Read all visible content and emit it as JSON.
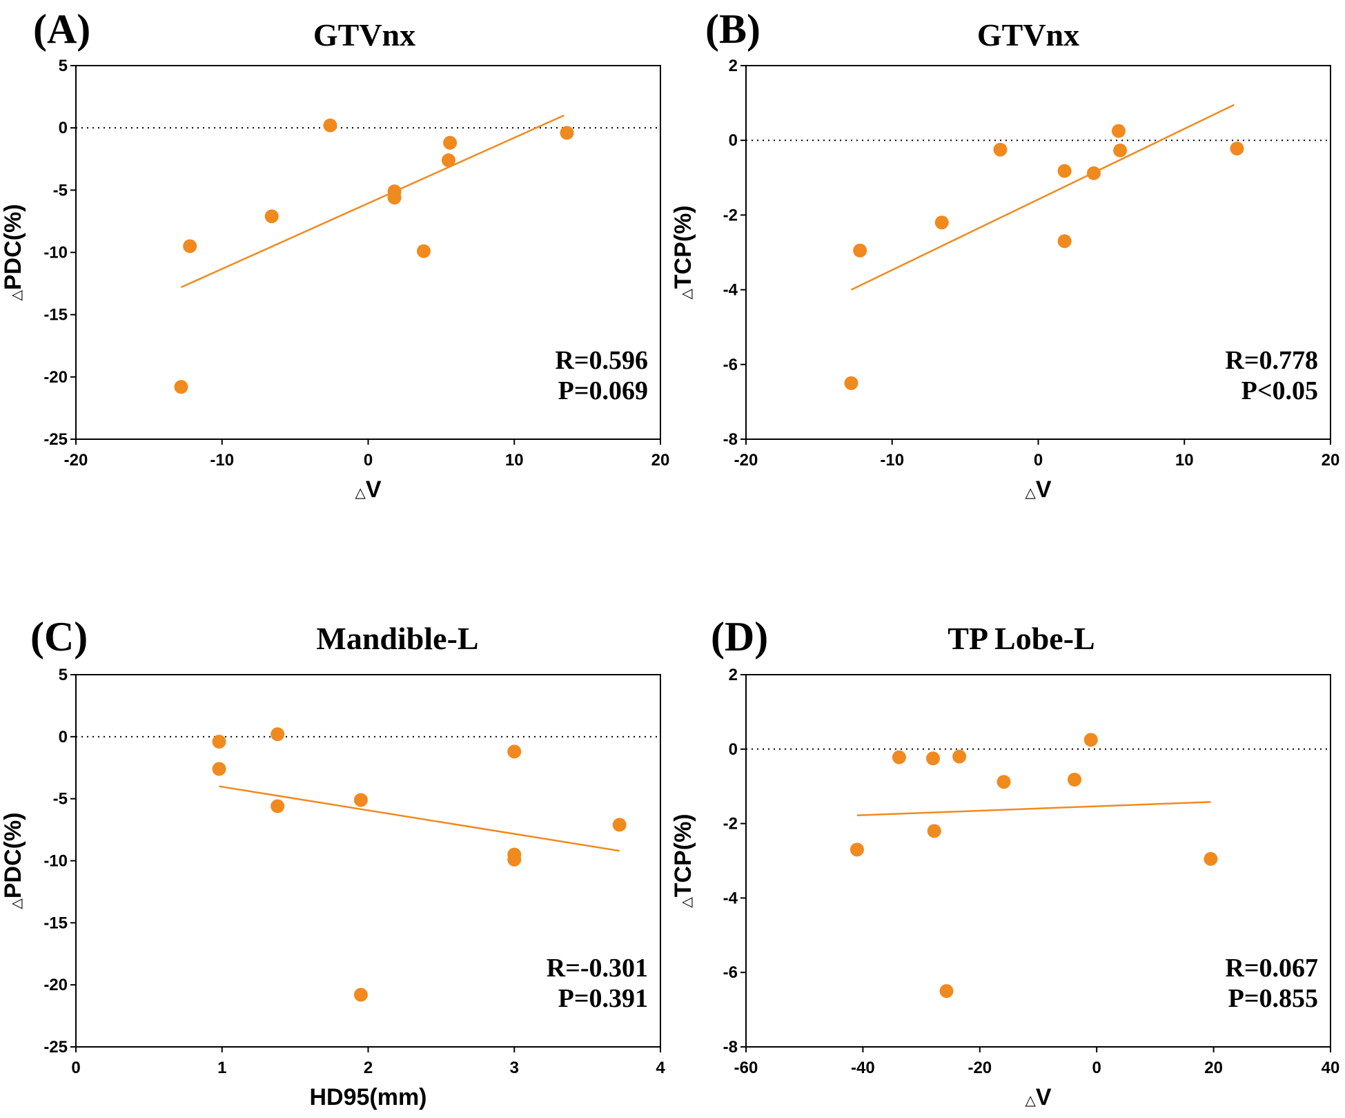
{
  "colors": {
    "marker": "#F08A1E",
    "axis": "#000000"
  },
  "chart_data": [
    {
      "type": "scatter",
      "panel_label": "(A)",
      "title": "GTVnx",
      "xlabel_symbol": "△",
      "xlabel": "V",
      "ylabel_symbol": "△",
      "ylabel": "PDC(%)",
      "xlim": [
        -20,
        20
      ],
      "ylim": [
        -25,
        5
      ],
      "xticks": [
        -20,
        -10,
        0,
        10,
        20
      ],
      "yticks": [
        -25,
        -20,
        -15,
        -10,
        -5,
        0,
        5
      ],
      "reference_line_y": 0,
      "x": [
        -12.8,
        -12.2,
        -6.6,
        -2.6,
        1.8,
        1.8,
        3.8,
        5.5,
        5.6,
        13.6
      ],
      "y": [
        -20.8,
        -9.5,
        -7.1,
        0.2,
        -5.1,
        -5.6,
        -9.9,
        -2.6,
        -1.2,
        -0.4
      ],
      "fit": {
        "x": [
          -12.8,
          13.4
        ],
        "y": [
          -12.8,
          1.0
        ]
      },
      "stats": [
        "R=0.596",
        "P=0.069"
      ]
    },
    {
      "type": "scatter",
      "panel_label": "(B)",
      "title": "GTVnx",
      "xlabel_symbol": "△",
      "xlabel": "V",
      "ylabel_symbol": "△",
      "ylabel": "TCP(%)",
      "xlim": [
        -20,
        20
      ],
      "ylim": [
        -8,
        2
      ],
      "xticks": [
        -20,
        -10,
        0,
        10,
        20
      ],
      "yticks": [
        -8,
        -6,
        -4,
        -2,
        0,
        2
      ],
      "reference_line_y": 0,
      "x": [
        -12.8,
        -12.2,
        -6.6,
        -2.6,
        1.8,
        1.8,
        3.8,
        5.5,
        5.6,
        13.6
      ],
      "y": [
        -6.5,
        -2.95,
        -2.2,
        -0.25,
        -0.82,
        -2.7,
        -0.88,
        0.25,
        -0.27,
        -0.22
      ],
      "fit": {
        "x": [
          -12.8,
          13.4
        ],
        "y": [
          -4.0,
          0.95
        ]
      },
      "stats": [
        "R=0.778",
        "P<0.05"
      ]
    },
    {
      "type": "scatter",
      "panel_label": "(C)",
      "title": "Mandible-L",
      "xlabel_symbol": "",
      "xlabel": "HD95(mm)",
      "ylabel_symbol": "△",
      "ylabel": "PDC(%)",
      "xlim": [
        0,
        4
      ],
      "ylim": [
        -25,
        5
      ],
      "xticks": [
        0,
        1,
        2,
        3,
        4
      ],
      "yticks": [
        -25,
        -20,
        -15,
        -10,
        -5,
        0,
        5
      ],
      "reference_line_y": 0,
      "x": [
        0.98,
        0.98,
        1.38,
        1.38,
        1.95,
        1.95,
        3.0,
        3.0,
        3.0,
        3.72
      ],
      "y": [
        -0.4,
        -2.6,
        0.2,
        -5.6,
        -5.1,
        -20.8,
        -1.2,
        -9.5,
        -9.9,
        -7.1
      ],
      "fit": {
        "x": [
          0.98,
          3.72
        ],
        "y": [
          -4.0,
          -9.2
        ]
      },
      "stats": [
        "R=-0.301",
        "P=0.391"
      ]
    },
    {
      "type": "scatter",
      "panel_label": "(D)",
      "title": "TP Lobe-L",
      "xlabel_symbol": "△",
      "xlabel": "V",
      "ylabel_symbol": "△",
      "ylabel": "TCP(%)",
      "xlim": [
        -60,
        40
      ],
      "ylim": [
        -8,
        2
      ],
      "xticks": [
        -60,
        -40,
        -20,
        0,
        20,
        40
      ],
      "yticks": [
        -8,
        -6,
        -4,
        -2,
        0,
        2
      ],
      "reference_line_y": 0,
      "x": [
        -41.0,
        -33.8,
        -28.0,
        -27.8,
        -23.5,
        -25.7,
        -15.9,
        -3.8,
        -1.0,
        19.5
      ],
      "y": [
        -2.7,
        -0.22,
        -0.25,
        -2.2,
        -0.2,
        -6.5,
        -0.88,
        -0.82,
        0.25,
        -2.95
      ],
      "fit": {
        "x": [
          -41.0,
          19.5
        ],
        "y": [
          -1.78,
          -1.42
        ]
      },
      "stats": [
        "R=0.067",
        "P=0.855"
      ]
    }
  ]
}
